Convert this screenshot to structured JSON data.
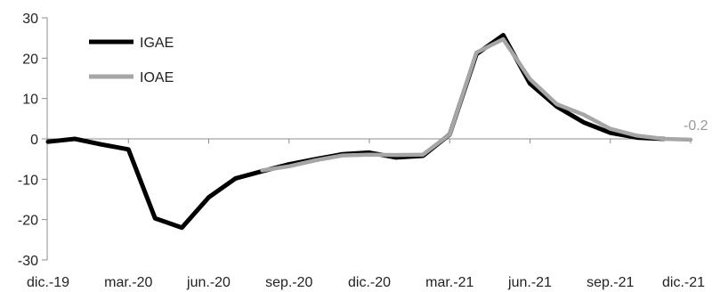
{
  "chart_data": {
    "type": "line",
    "title": "",
    "xlabel": "",
    "ylabel": "",
    "ylim": [
      -30,
      30
    ],
    "yticks": [
      30,
      20,
      10,
      0,
      -10,
      -20,
      -30
    ],
    "categories": [
      "dic.-19",
      "ene.-20",
      "feb.-20",
      "mar.-20",
      "abr.-20",
      "may.-20",
      "jun.-20",
      "jul.-20",
      "ago.-20",
      "sep.-20",
      "oct.-20",
      "nov.-20",
      "dic.-20",
      "ene.-21",
      "feb.-21",
      "mar.-21",
      "abr.-21",
      "may.-21",
      "jun.-21",
      "jul.-21",
      "ago.-21",
      "sep.-21",
      "oct.-21",
      "nov.-21",
      "dic.-21"
    ],
    "x_tick_labels": [
      "dic.-19",
      "mar.-20",
      "jun.-20",
      "sep.-20",
      "dic.-20",
      "mar.-21",
      "jun.-21",
      "sep.-21",
      "dic.-21"
    ],
    "series": [
      {
        "name": "IGAE",
        "color": "#000000",
        "values": [
          -0.7,
          0.0,
          -1.4,
          -2.6,
          -19.7,
          -22.0,
          -14.5,
          -9.8,
          -8.0,
          -6.3,
          -5.0,
          -3.8,
          -3.4,
          -4.6,
          -4.2,
          1.1,
          21.0,
          25.7,
          13.7,
          8.0,
          4.1,
          1.5,
          0.3,
          0.0,
          null
        ]
      },
      {
        "name": "IOAE",
        "color": "#a6a6a6",
        "values": [
          null,
          null,
          null,
          null,
          null,
          null,
          null,
          null,
          -7.8,
          -6.8,
          -5.3,
          -4.1,
          -3.9,
          -4.0,
          -3.9,
          1.1,
          21.4,
          24.7,
          14.8,
          8.6,
          6.0,
          2.5,
          0.8,
          0.0,
          -0.2
        ]
      }
    ],
    "end_label": "-0.2",
    "legend_position": "top-left",
    "grid": false
  }
}
